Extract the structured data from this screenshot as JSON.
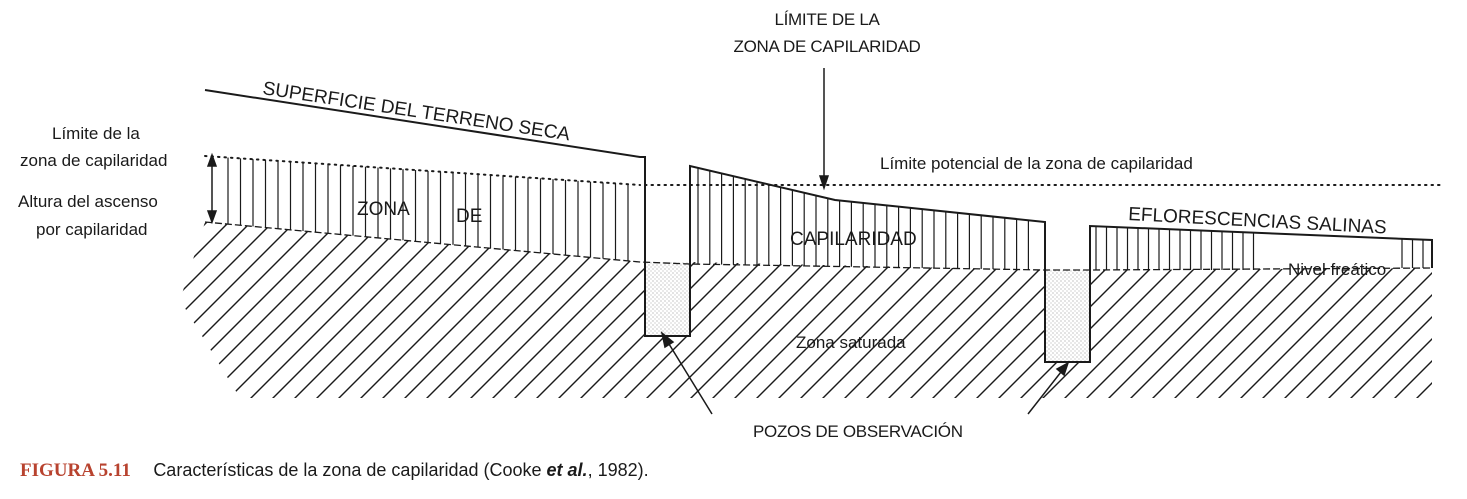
{
  "labels": {
    "limite_zona_top_1": "LÍMITE DE LA",
    "limite_zona_top_2": "ZONA DE CAPILARIDAD",
    "superficie": "SUPERFICIE DEL TERRENO SECA",
    "limite_left_1": "Límite de la",
    "limite_left_2": "zona de capilaridad",
    "altura_1": "Altura del ascenso",
    "altura_2": "por capilaridad",
    "zona": "ZONA",
    "de": "DE",
    "capilaridad": "CAPILARIDAD",
    "limite_potencial": "Límite potencial de la zona de capilaridad",
    "eflorescencias": "EFLORESCENCIAS SALINAS",
    "nivel_freatico": "Nivel freático",
    "zona_saturada": "Zona saturada",
    "pozos": "POZOS DE OBSERVACIÓN"
  },
  "caption": {
    "figure_number": "FIGURA 5.11",
    "text_before": "Características de la zona de capilaridad (Cooke ",
    "text_italic": "et al.",
    "text_after": ", 1982)."
  },
  "colors": {
    "line": "#1a1a1a",
    "caption_accent": "#b8432f"
  }
}
